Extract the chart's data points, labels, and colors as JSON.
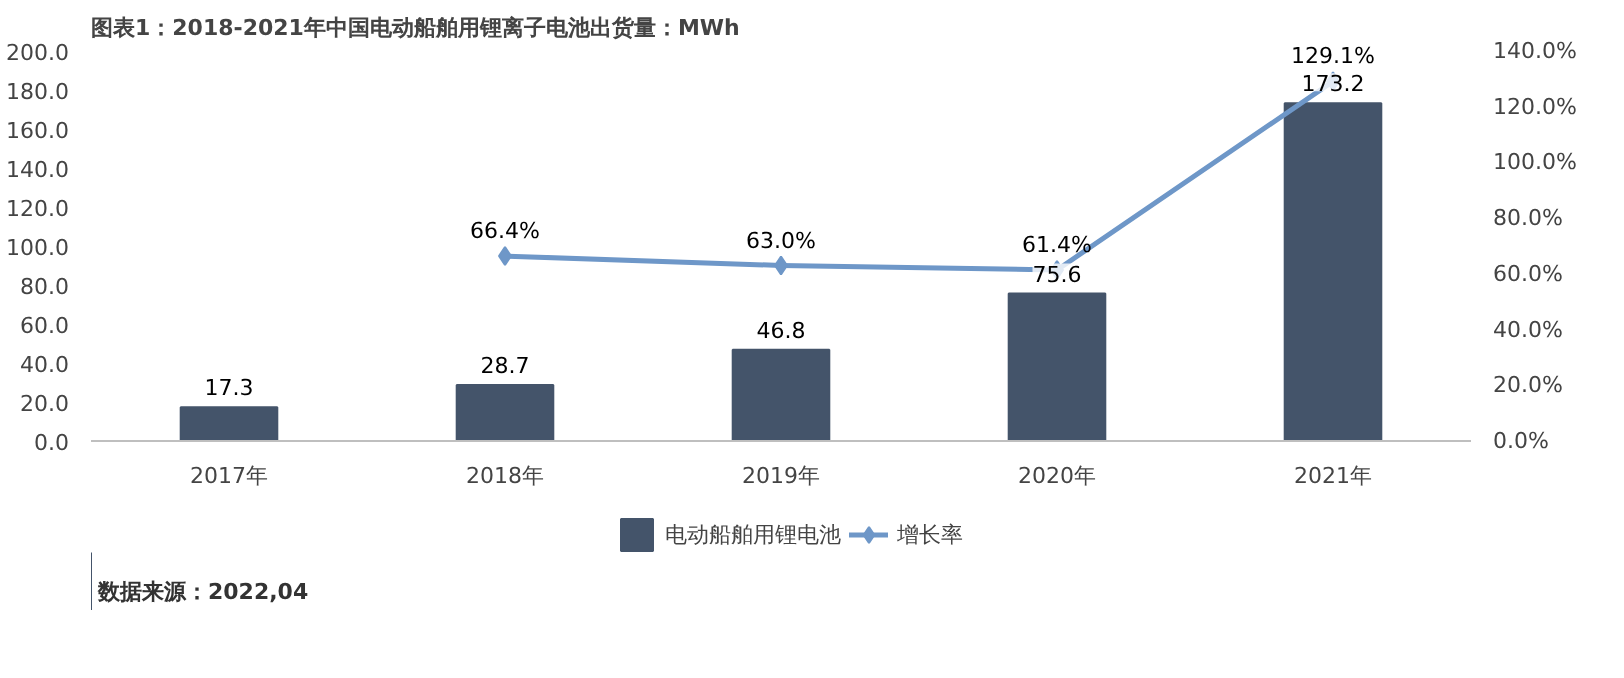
{
  "chart_data": {
    "type": "bar",
    "title": "图表1：2018-2021年中国电动船舶用锂离子电池出货量：MWh",
    "categories": [
      "2017年",
      "2018年",
      "2019年",
      "2020年",
      "2021年"
    ],
    "series": [
      {
        "name": "电动船舶用锂电池",
        "color": "#44546a",
        "values": [
          17.3,
          28.7,
          46.8,
          75.6,
          173.2
        ],
        "value_labels": [
          "17.3",
          "28.7",
          "46.8",
          "75.6",
          "173.2"
        ]
      },
      {
        "name": "增长率",
        "type": "line",
        "axis": "y2",
        "color": "#6e97c8",
        "marker": "diamond",
        "line_style": "solid",
        "values": [
          null,
          66.4,
          63.0,
          61.4,
          129.1
        ],
        "value_labels": [
          null,
          "66.4%",
          "63.0%",
          "61.4%",
          "129.1%"
        ]
      }
    ],
    "ylim": [
      0,
      200
    ],
    "yticks": [
      {
        "value": 0,
        "label": "0.0"
      },
      {
        "value": 20,
        "label": "20.0"
      },
      {
        "value": 40,
        "label": "40.0"
      },
      {
        "value": 60,
        "label": "60.0"
      },
      {
        "value": 80,
        "label": "80.0"
      },
      {
        "value": 100,
        "label": "100.0"
      },
      {
        "value": 120,
        "label": "120.0"
      },
      {
        "value": 140,
        "label": "140.0"
      },
      {
        "value": 160,
        "label": "160.0"
      },
      {
        "value": 180,
        "label": "180.0"
      },
      {
        "value": 200,
        "label": "200.0"
      }
    ],
    "y2lim": [
      0,
      140
    ],
    "y2ticks": [
      {
        "value": 0,
        "label": "0.0%"
      },
      {
        "value": 20,
        "label": "20.0%"
      },
      {
        "value": 40,
        "label": "40.0%"
      },
      {
        "value": 60,
        "label": "60.0%"
      },
      {
        "value": 80,
        "label": "80.0%"
      },
      {
        "value": 100,
        "label": "100.0%"
      },
      {
        "value": 120,
        "label": "120.0%"
      },
      {
        "value": 140,
        "label": "140.0%"
      }
    ],
    "grid": false,
    "legend": "bottom",
    "annotations": [
      "数据来源：2022,04"
    ]
  }
}
